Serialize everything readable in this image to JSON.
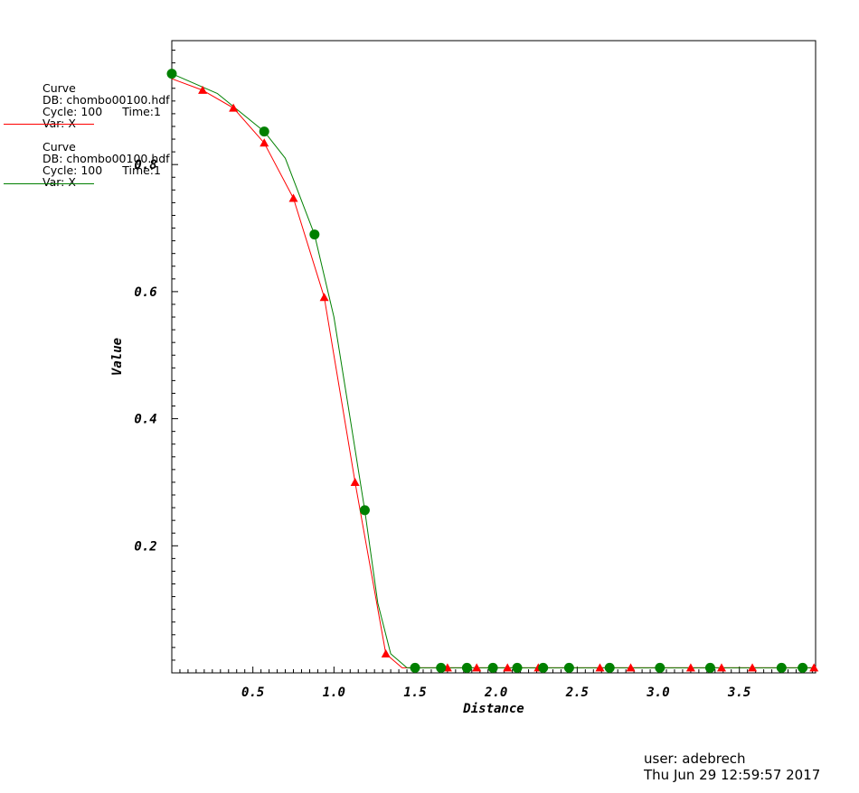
{
  "legend": [
    {
      "title": "Curve",
      "db": "DB: chombo00100.hdf",
      "cycle": "Cycle: 100",
      "time": "Time:1",
      "var": "Var: X",
      "color": "#ff0000"
    },
    {
      "title": "Curve",
      "db": "DB: chombo00100.hdf",
      "cycle": "Cycle: 100",
      "time": "Time:1",
      "var": "Var: X",
      "color": "#008000"
    }
  ],
  "footer": {
    "user": "user: adebrech",
    "date": "Thu Jun 29 12:59:57 2017"
  },
  "chart_data": {
    "type": "line",
    "xlabel": "Distance",
    "ylabel": "Value",
    "xlim": [
      0.0,
      3.97
    ],
    "ylim": [
      0.0,
      0.995
    ],
    "xticks": [
      "0.5",
      "1.0",
      "1.5",
      "2.0",
      "2.5",
      "3.0",
      "3.5"
    ],
    "yticks": [
      "0.2",
      "0.4",
      "0.6",
      "0.8"
    ],
    "grid": false,
    "series": [
      {
        "color": "#ff0000",
        "marker": "triangle",
        "points": [
          [
            0.0,
            0.935
          ],
          [
            0.19,
            0.917
          ],
          [
            0.38,
            0.889
          ],
          [
            0.57,
            0.834
          ],
          [
            0.75,
            0.747
          ],
          [
            0.94,
            0.591
          ],
          [
            1.13,
            0.3
          ],
          [
            1.32,
            0.03
          ],
          [
            1.42,
            0.008
          ],
          [
            1.51,
            0.008
          ],
          [
            1.7,
            0.008
          ],
          [
            1.88,
            0.008
          ],
          [
            2.07,
            0.008
          ],
          [
            2.26,
            0.008
          ],
          [
            2.45,
            0.008
          ],
          [
            2.64,
            0.008
          ],
          [
            2.83,
            0.008
          ],
          [
            3.02,
            0.008
          ],
          [
            3.2,
            0.008
          ],
          [
            3.39,
            0.008
          ],
          [
            3.58,
            0.008
          ],
          [
            3.97,
            0.008
          ]
        ],
        "marker_points": [
          [
            0.19,
            0.917
          ],
          [
            0.38,
            0.889
          ],
          [
            0.57,
            0.834
          ],
          [
            0.75,
            0.747
          ],
          [
            0.94,
            0.591
          ],
          [
            1.13,
            0.3
          ],
          [
            1.32,
            0.03
          ],
          [
            1.7,
            0.008
          ],
          [
            1.88,
            0.008
          ],
          [
            2.07,
            0.008
          ],
          [
            2.26,
            0.008
          ],
          [
            2.64,
            0.008
          ],
          [
            2.83,
            0.008
          ],
          [
            3.2,
            0.008
          ],
          [
            3.39,
            0.008
          ],
          [
            3.58,
            0.008
          ],
          [
            3.96,
            0.008
          ]
        ]
      },
      {
        "color": "#008000",
        "marker": "circle",
        "points": [
          [
            0.0,
            0.943
          ],
          [
            0.28,
            0.912
          ],
          [
            0.57,
            0.852
          ],
          [
            0.7,
            0.81
          ],
          [
            0.88,
            0.69
          ],
          [
            1.0,
            0.56
          ],
          [
            1.1,
            0.4
          ],
          [
            1.19,
            0.256
          ],
          [
            1.27,
            0.11
          ],
          [
            1.35,
            0.03
          ],
          [
            1.45,
            0.008
          ],
          [
            1.5,
            0.008
          ],
          [
            1.66,
            0.008
          ],
          [
            1.82,
            0.008
          ],
          [
            1.98,
            0.008
          ],
          [
            2.13,
            0.008
          ],
          [
            2.29,
            0.008
          ],
          [
            2.45,
            0.008
          ],
          [
            2.7,
            0.008
          ],
          [
            3.01,
            0.008
          ],
          [
            3.32,
            0.008
          ],
          [
            3.76,
            0.008
          ],
          [
            3.89,
            0.008
          ],
          [
            3.97,
            0.008
          ]
        ],
        "marker_points": [
          [
            0.0,
            0.943
          ],
          [
            0.57,
            0.852
          ],
          [
            0.88,
            0.69
          ],
          [
            1.19,
            0.256
          ],
          [
            1.5,
            0.008
          ],
          [
            1.66,
            0.008
          ],
          [
            1.82,
            0.008
          ],
          [
            1.98,
            0.008
          ],
          [
            2.13,
            0.008
          ],
          [
            2.29,
            0.008
          ],
          [
            2.45,
            0.008
          ],
          [
            2.7,
            0.008
          ],
          [
            3.01,
            0.008
          ],
          [
            3.32,
            0.008
          ],
          [
            3.76,
            0.008
          ],
          [
            3.89,
            0.008
          ]
        ]
      }
    ]
  }
}
